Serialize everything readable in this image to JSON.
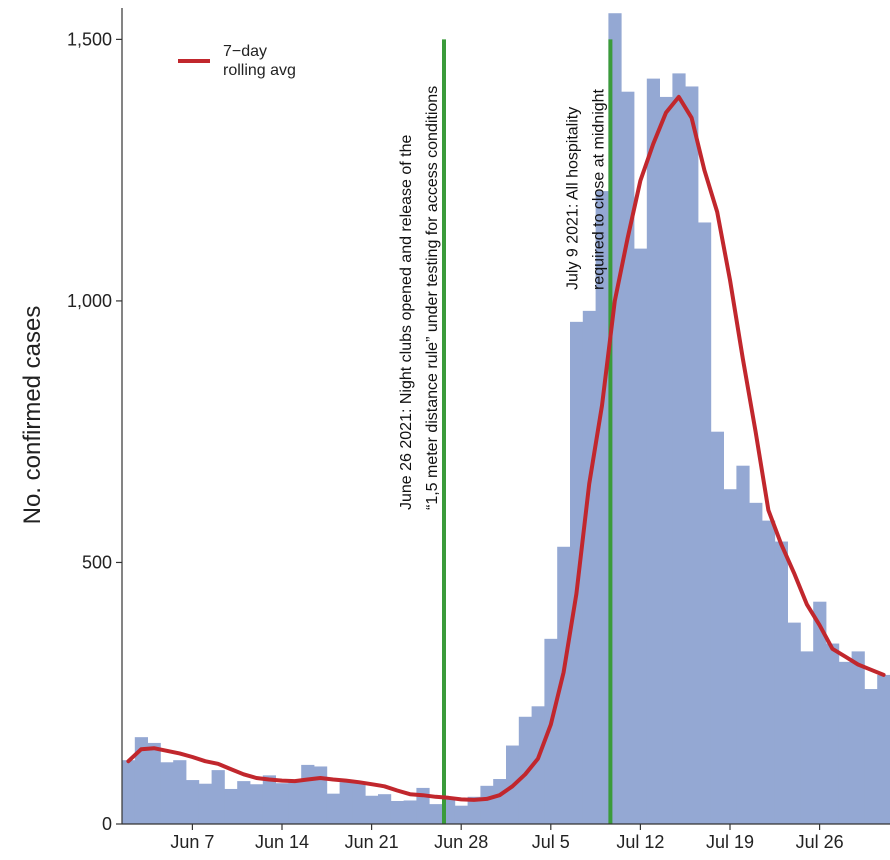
{
  "chart_data": {
    "type": "bar",
    "ylabel": "No. confirmed cases",
    "ylim": [
      0,
      1560
    ],
    "y_ticks": [
      0,
      500,
      1000,
      1500
    ],
    "y_tick_labels": [
      "0",
      "500",
      "1,000",
      "1,500"
    ],
    "x_ticks": [
      "Jun 7",
      "Jun 14",
      "Jun 21",
      "Jun 28",
      "Jul 5",
      "Jul 12",
      "Jul 19",
      "Jul 26"
    ],
    "x_tick_index": [
      5,
      12,
      19,
      26,
      33,
      40,
      47,
      54
    ],
    "dates": [
      "Jun 2",
      "Jun 3",
      "Jun 4",
      "Jun 5",
      "Jun 6",
      "Jun 7",
      "Jun 8",
      "Jun 9",
      "Jun 10",
      "Jun 11",
      "Jun 12",
      "Jun 13",
      "Jun 14",
      "Jun 15",
      "Jun 16",
      "Jun 17",
      "Jun 18",
      "Jun 19",
      "Jun 20",
      "Jun 21",
      "Jun 22",
      "Jun 23",
      "Jun 24",
      "Jun 25",
      "Jun 26",
      "Jun 27",
      "Jun 28",
      "Jun 29",
      "Jun 30",
      "Jul 1",
      "Jul 2",
      "Jul 3",
      "Jul 4",
      "Jul 5",
      "Jul 6",
      "Jul 7",
      "Jul 8",
      "Jul 9",
      "Jul 10",
      "Jul 11",
      "Jul 12",
      "Jul 13",
      "Jul 14",
      "Jul 15",
      "Jul 16",
      "Jul 17",
      "Jul 18",
      "Jul 19",
      "Jul 20",
      "Jul 21",
      "Jul 22",
      "Jul 23",
      "Jul 24",
      "Jul 25",
      "Jul 26",
      "Jul 27",
      "Jul 28",
      "Jul 29",
      "Jul 30",
      "Jul 31"
    ],
    "series": [
      {
        "name": "",
        "type": "bar",
        "color": "#94a8d3",
        "values": [
          122,
          166,
          155,
          118,
          122,
          84,
          77,
          103,
          67,
          82,
          76,
          93,
          78,
          82,
          113,
          110,
          58,
          80,
          78,
          54,
          57,
          44,
          45,
          69,
          38,
          47,
          35,
          52,
          73,
          86,
          150,
          205,
          225,
          354,
          530,
          960,
          981,
          1210,
          1550,
          1400,
          1100,
          1425,
          1390,
          1435,
          1410,
          1150,
          750,
          640,
          685,
          614,
          580,
          540,
          385,
          330,
          425,
          345,
          310,
          330,
          258,
          285
        ]
      },
      {
        "name": "7-day rolling avg",
        "type": "line",
        "color": "#c1272d",
        "values": [
          120,
          143,
          145,
          140,
          135,
          128,
          120,
          115,
          105,
          95,
          88,
          85,
          83,
          82,
          85,
          88,
          85,
          83,
          80,
          76,
          72,
          64,
          57,
          55,
          52,
          50,
          47,
          46,
          48,
          55,
          72,
          95,
          125,
          190,
          290,
          440,
          650,
          800,
          1000,
          1120,
          1230,
          1300,
          1360,
          1390,
          1350,
          1250,
          1170,
          1040,
          890,
          750,
          600,
          535,
          480,
          420,
          380,
          335,
          320,
          305,
          295,
          285
        ]
      }
    ],
    "annotations": [
      {
        "date_index": 25,
        "color": "#3a9b3a",
        "y_top": 1500,
        "lines": [
          "June 26 2021: Night clubs opened and release of the",
          "“1,5 meter distance rule” under testing for access conditions"
        ]
      },
      {
        "date_index": 38,
        "color": "#3a9b3a",
        "y_top": 1500,
        "lines": [
          "July 9 2021: All hospitality",
          "required to close at midnight"
        ]
      }
    ],
    "legend": {
      "position": "top-left",
      "labels": [
        "7−day",
        "rolling avg"
      ]
    },
    "grid": false
  }
}
